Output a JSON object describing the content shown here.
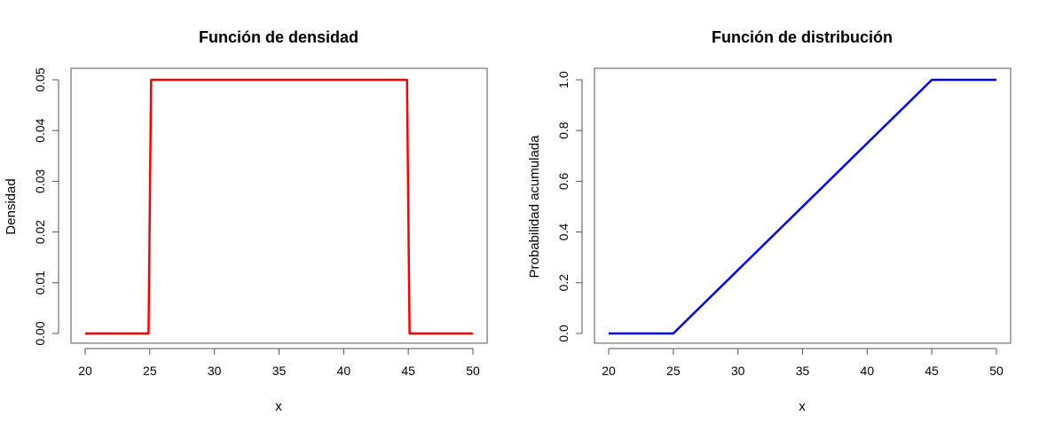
{
  "chart_data": [
    {
      "type": "line",
      "title": "Función de densidad",
      "xlabel": "x",
      "ylabel": "Densidad",
      "xlim": [
        20,
        50
      ],
      "ylim": [
        0,
        0.05
      ],
      "xticks": [
        20,
        25,
        30,
        35,
        40,
        45,
        50
      ],
      "yticks": [
        0.0,
        0.01,
        0.02,
        0.03,
        0.04,
        0.05
      ],
      "ytick_labels": [
        "0.00",
        "0.01",
        "0.02",
        "0.03",
        "0.04",
        "0.05"
      ],
      "grid": false,
      "color": "#ff0000",
      "series": [
        {
          "x": [
            20,
            24.9,
            25.1,
            44.9,
            45.1,
            50
          ],
          "y": [
            0,
            0,
            0.05,
            0.05,
            0,
            0
          ]
        }
      ]
    },
    {
      "type": "line",
      "title": "Función de distribución",
      "xlabel": "x",
      "ylabel": "Probabilidad acumulada",
      "xlim": [
        20,
        50
      ],
      "ylim": [
        0,
        1
      ],
      "xticks": [
        20,
        25,
        30,
        35,
        40,
        45,
        50
      ],
      "yticks": [
        0,
        0.2,
        0.4,
        0.6,
        0.8,
        1.0
      ],
      "ytick_labels": [
        "0.0",
        "0.2",
        "0.4",
        "0.6",
        "0.8",
        "1.0"
      ],
      "grid": false,
      "color": "#0000ff",
      "series": [
        {
          "x": [
            20,
            25,
            45,
            50
          ],
          "y": [
            0,
            0,
            1,
            1
          ]
        }
      ]
    }
  ]
}
